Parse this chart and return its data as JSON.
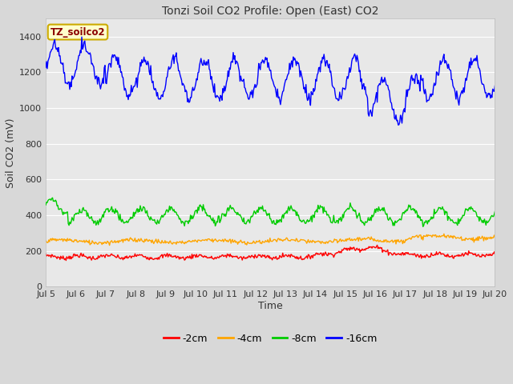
{
  "title": "Tonzi Soil CO2 Profile: Open (East) CO2",
  "xlabel": "Time",
  "ylabel": "Soil CO2 (mV)",
  "xlim": [
    0,
    15
  ],
  "ylim": [
    0,
    1500
  ],
  "yticks": [
    0,
    200,
    400,
    600,
    800,
    1000,
    1200,
    1400
  ],
  "xtick_labels": [
    "Jul 5",
    "Jul 6",
    "Jul 7",
    "Jul 8",
    "Jul 9",
    "Jul 10",
    "Jul 11",
    "Jul 12",
    "Jul 13",
    "Jul 14",
    "Jul 15",
    "Jul 16",
    "Jul 17",
    "Jul 18",
    "Jul 19",
    "Jul 20"
  ],
  "fig_bg_color": "#d8d8d8",
  "axes_bg_color": "#e8e8e8",
  "legend_label": "TZ_soilco2",
  "series_labels": [
    "-2cm",
    "-4cm",
    "-8cm",
    "-16cm"
  ],
  "series_colors": [
    "#ff0000",
    "#ffa500",
    "#00cc00",
    "#0000ff"
  ],
  "line_width": 1.0,
  "grid_color": "#ffffff",
  "grid_linewidth": 0.8,
  "title_fontsize": 10,
  "label_fontsize": 9,
  "tick_fontsize": 8
}
